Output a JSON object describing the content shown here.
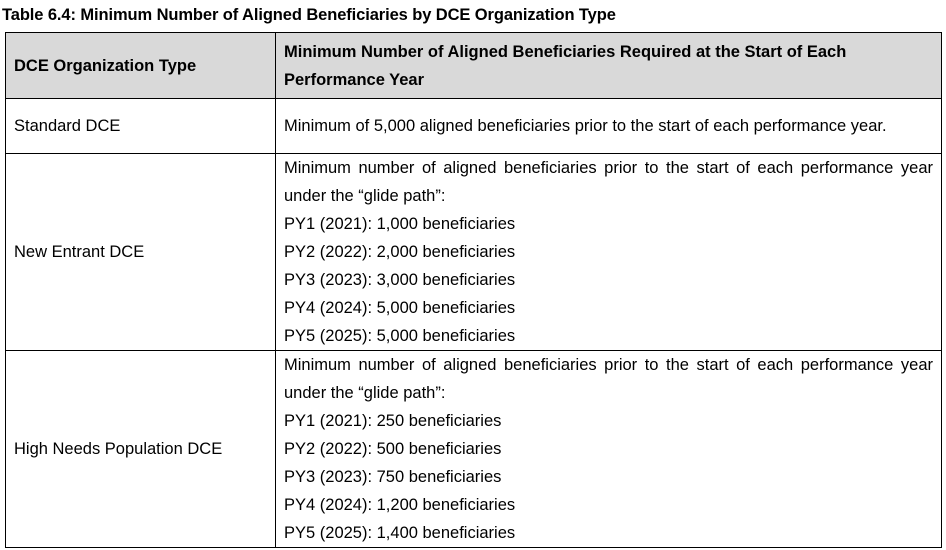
{
  "caption": "Table 6.4: Minimum Number of Aligned Beneficiaries by DCE Organization Type",
  "table": {
    "headers": [
      "DCE Organization Type",
      "Minimum Number of Aligned Beneficiaries Required at the Start of Each Performance Year"
    ],
    "rows": [
      {
        "type": "Standard DCE",
        "intro": "Minimum of 5,000 aligned beneficiaries prior to the start of each performance year.",
        "items": []
      },
      {
        "type": "New Entrant DCE",
        "intro": "Minimum number of aligned beneficiaries prior to the start of each performance year under the “glide path”:",
        "items": [
          "PY1 (2021): 1,000 beneficiaries",
          "PY2 (2022): 2,000 beneficiaries",
          "PY3 (2023): 3,000 beneficiaries",
          "PY4 (2024): 5,000 beneficiaries",
          "PY5 (2025): 5,000 beneficiaries"
        ]
      },
      {
        "type": "High Needs Population DCE",
        "intro": "Minimum number of aligned beneficiaries prior to the start of each performance year under the “glide path”:",
        "items": [
          "PY1 (2021): 250 beneficiaries",
          "PY2 (2022): 500 beneficiaries",
          "PY3 (2023): 750 beneficiaries",
          "PY4 (2024): 1,200 beneficiaries",
          "PY5 (2025): 1,400 beneficiaries"
        ]
      }
    ]
  },
  "colors": {
    "header_background": "#d9d9d9",
    "border": "#000000",
    "text": "#000000"
  }
}
